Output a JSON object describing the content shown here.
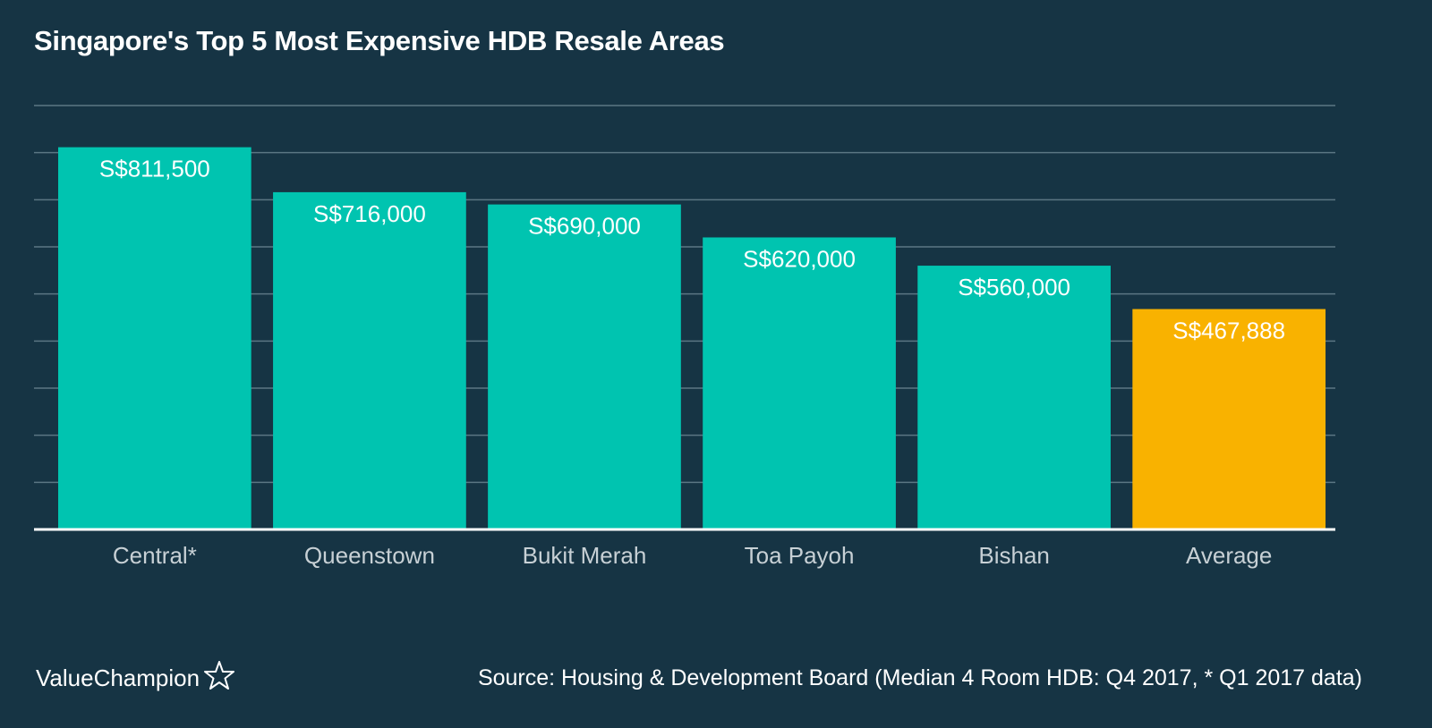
{
  "chart_title": "Singapore's Top 5 Most Expensive HDB Resale Areas",
  "logo_text": "ValueChampion",
  "source_text": "Source: Housing & Development Board (Median 4 Room HDB: Q4 2017, * Q1 2017 data)",
  "colors": {
    "background": "#163444",
    "bar": "#00c4b0",
    "average_bar": "#f9b200",
    "grid": "#5b7683",
    "text": "#ffffff",
    "tick_text": "#c7d0d5"
  },
  "chart_data": {
    "type": "bar",
    "categories": [
      "Central*",
      "Queenstown",
      "Bukit Merah",
      "Toa Payoh",
      "Bishan",
      "Average"
    ],
    "values": [
      811500,
      716000,
      690000,
      620000,
      560000,
      467888
    ],
    "data_labels": [
      "S$811,500",
      "S$716,000",
      "S$690,000",
      "S$620,000",
      "S$560,000",
      "S$467,888"
    ],
    "highlight": [
      "normal",
      "normal",
      "normal",
      "normal",
      "normal",
      "average"
    ],
    "ylim": [
      0,
      900000
    ],
    "gridline_step": 100000,
    "grid": true,
    "legend": "none"
  }
}
